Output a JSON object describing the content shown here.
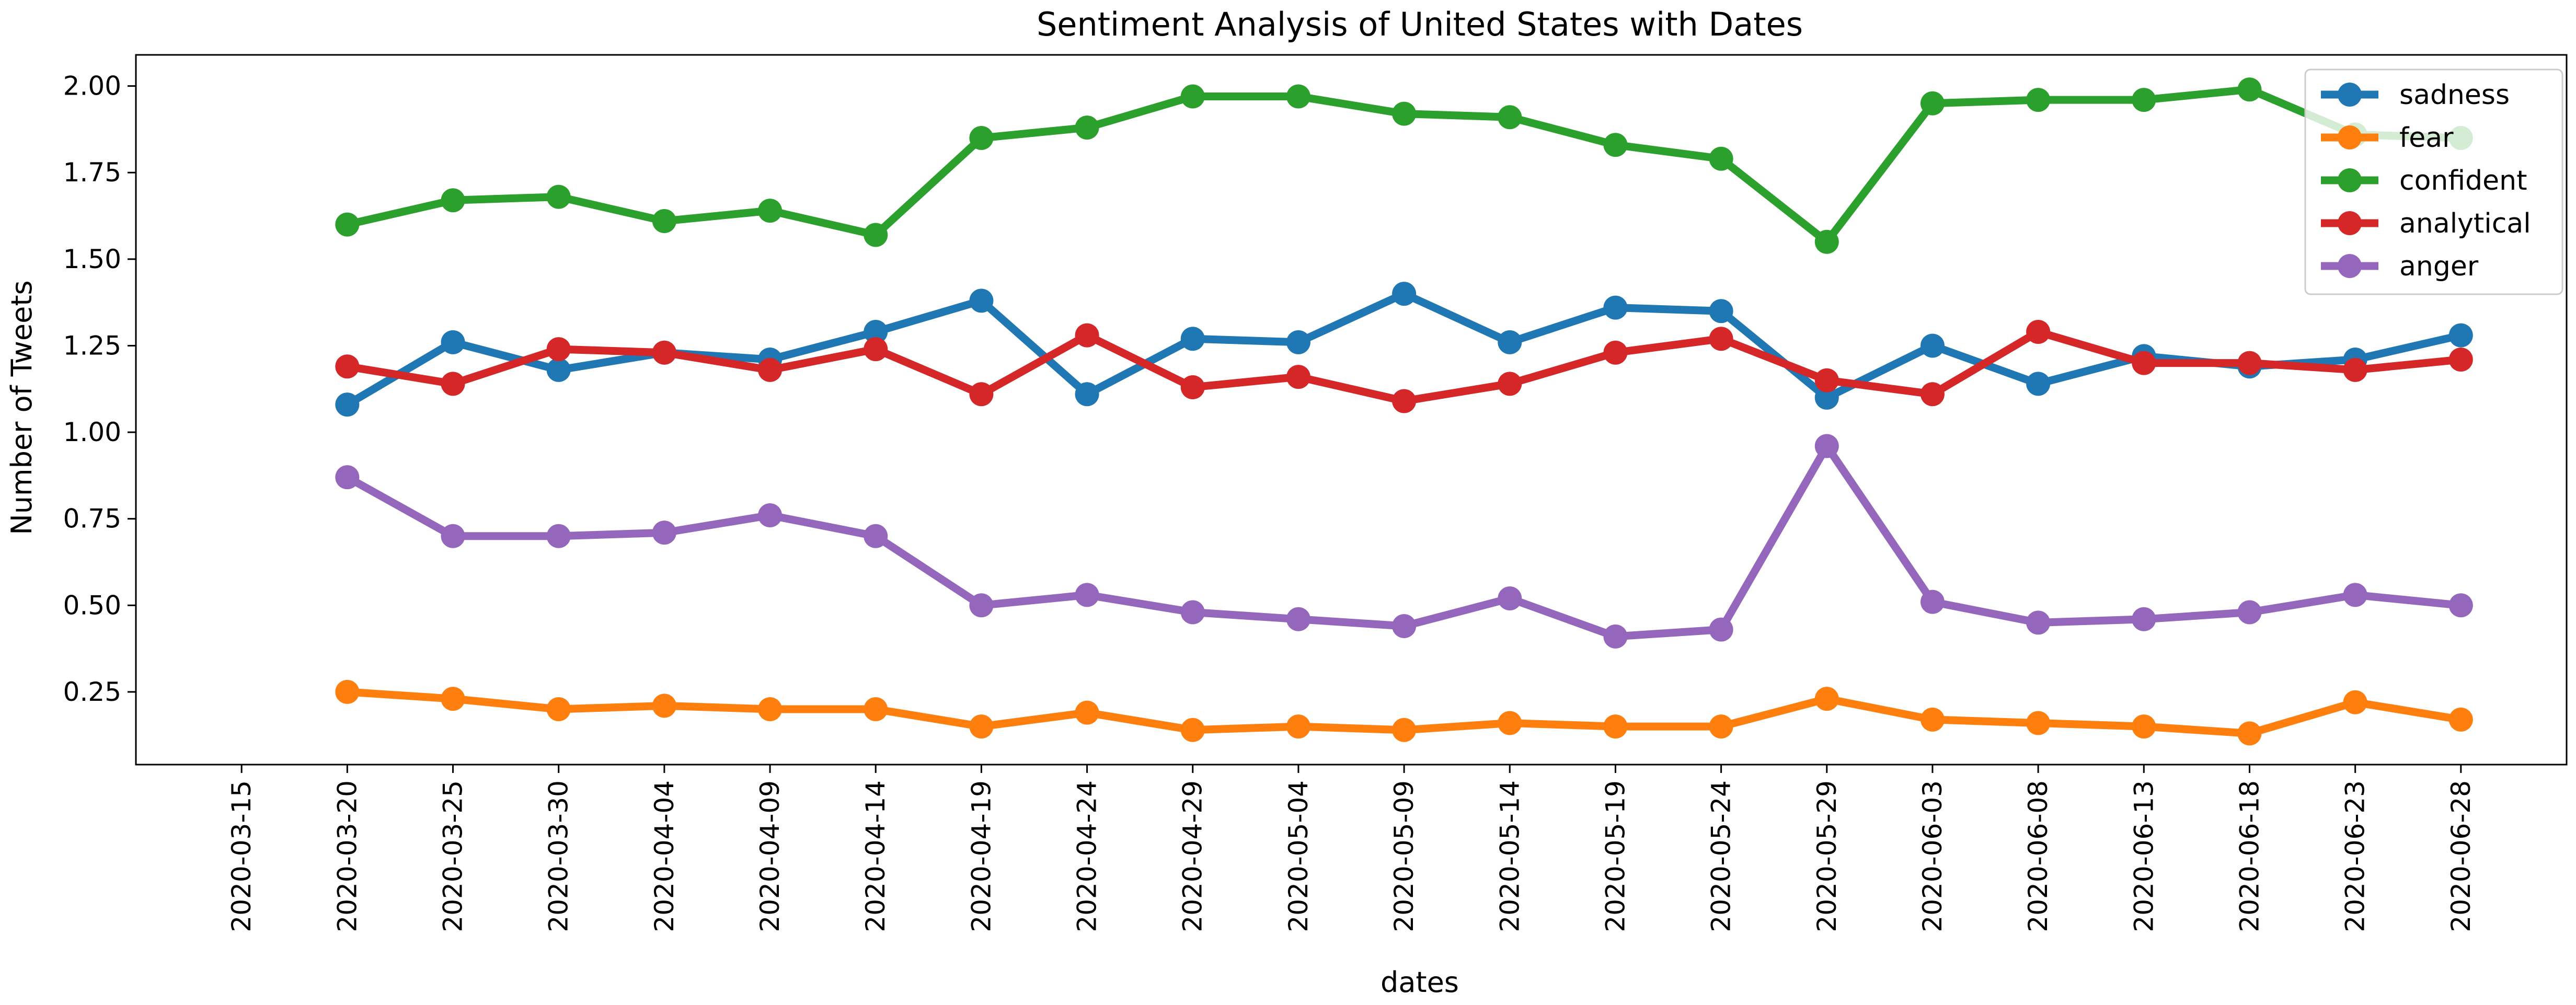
{
  "chart_data": {
    "type": "line",
    "title": "Sentiment Analysis of United States with Dates",
    "xlabel": "dates",
    "ylabel": "Number of Tweets",
    "x": [
      "2020-03-20",
      "2020-03-25",
      "2020-03-30",
      "2020-04-04",
      "2020-04-09",
      "2020-04-14",
      "2020-04-19",
      "2020-04-24",
      "2020-04-29",
      "2020-05-04",
      "2020-05-09",
      "2020-05-14",
      "2020-05-19",
      "2020-05-24",
      "2020-05-29",
      "2020-06-03",
      "2020-06-08",
      "2020-06-13",
      "2020-06-18",
      "2020-06-23",
      "2020-06-28"
    ],
    "x_ticks": [
      "2020-03-15",
      "2020-03-20",
      "2020-03-25",
      "2020-03-30",
      "2020-04-04",
      "2020-04-09",
      "2020-04-14",
      "2020-04-19",
      "2020-04-24",
      "2020-04-29",
      "2020-05-04",
      "2020-05-09",
      "2020-05-14",
      "2020-05-19",
      "2020-05-24",
      "2020-05-29",
      "2020-06-03",
      "2020-06-08",
      "2020-06-13",
      "2020-06-18",
      "2020-06-23",
      "2020-06-28"
    ],
    "xlim": [
      "2020-03-10",
      "2020-07-03"
    ],
    "y_ticks": [
      "0.25",
      "0.50",
      "0.75",
      "1.00",
      "1.25",
      "1.50",
      "1.75",
      "2.00"
    ],
    "ylim": [
      0.04,
      2.09
    ],
    "grid": false,
    "legend_position": "top-right",
    "series": [
      {
        "name": "sadness",
        "color": "#1f77b4",
        "values": [
          1.08,
          1.26,
          1.18,
          1.23,
          1.21,
          1.29,
          1.38,
          1.11,
          1.27,
          1.26,
          1.4,
          1.26,
          1.36,
          1.35,
          1.1,
          1.25,
          1.14,
          1.22,
          1.19,
          1.21,
          1.28
        ]
      },
      {
        "name": "fear",
        "color": "#ff7f0e",
        "values": [
          0.25,
          0.23,
          0.2,
          0.21,
          0.2,
          0.2,
          0.15,
          0.19,
          0.14,
          0.15,
          0.14,
          0.16,
          0.15,
          0.15,
          0.23,
          0.17,
          0.16,
          0.15,
          0.13,
          0.22,
          0.17
        ]
      },
      {
        "name": "confident",
        "color": "#2ca02c",
        "values": [
          1.6,
          1.67,
          1.68,
          1.61,
          1.64,
          1.57,
          1.85,
          1.88,
          1.97,
          1.97,
          1.92,
          1.91,
          1.83,
          1.79,
          1.55,
          1.95,
          1.96,
          1.96,
          1.99,
          1.86,
          1.85
        ]
      },
      {
        "name": "analytical",
        "color": "#d62728",
        "values": [
          1.19,
          1.14,
          1.24,
          1.23,
          1.18,
          1.24,
          1.11,
          1.28,
          1.13,
          1.16,
          1.09,
          1.14,
          1.23,
          1.27,
          1.15,
          1.11,
          1.29,
          1.2,
          1.2,
          1.18,
          1.21
        ]
      },
      {
        "name": "anger",
        "color": "#9467bd",
        "values": [
          0.87,
          0.7,
          0.7,
          0.71,
          0.76,
          0.7,
          0.5,
          0.53,
          0.48,
          0.46,
          0.44,
          0.52,
          0.41,
          0.43,
          0.96,
          0.51,
          0.45,
          0.46,
          0.48,
          0.53,
          0.5
        ]
      }
    ]
  }
}
